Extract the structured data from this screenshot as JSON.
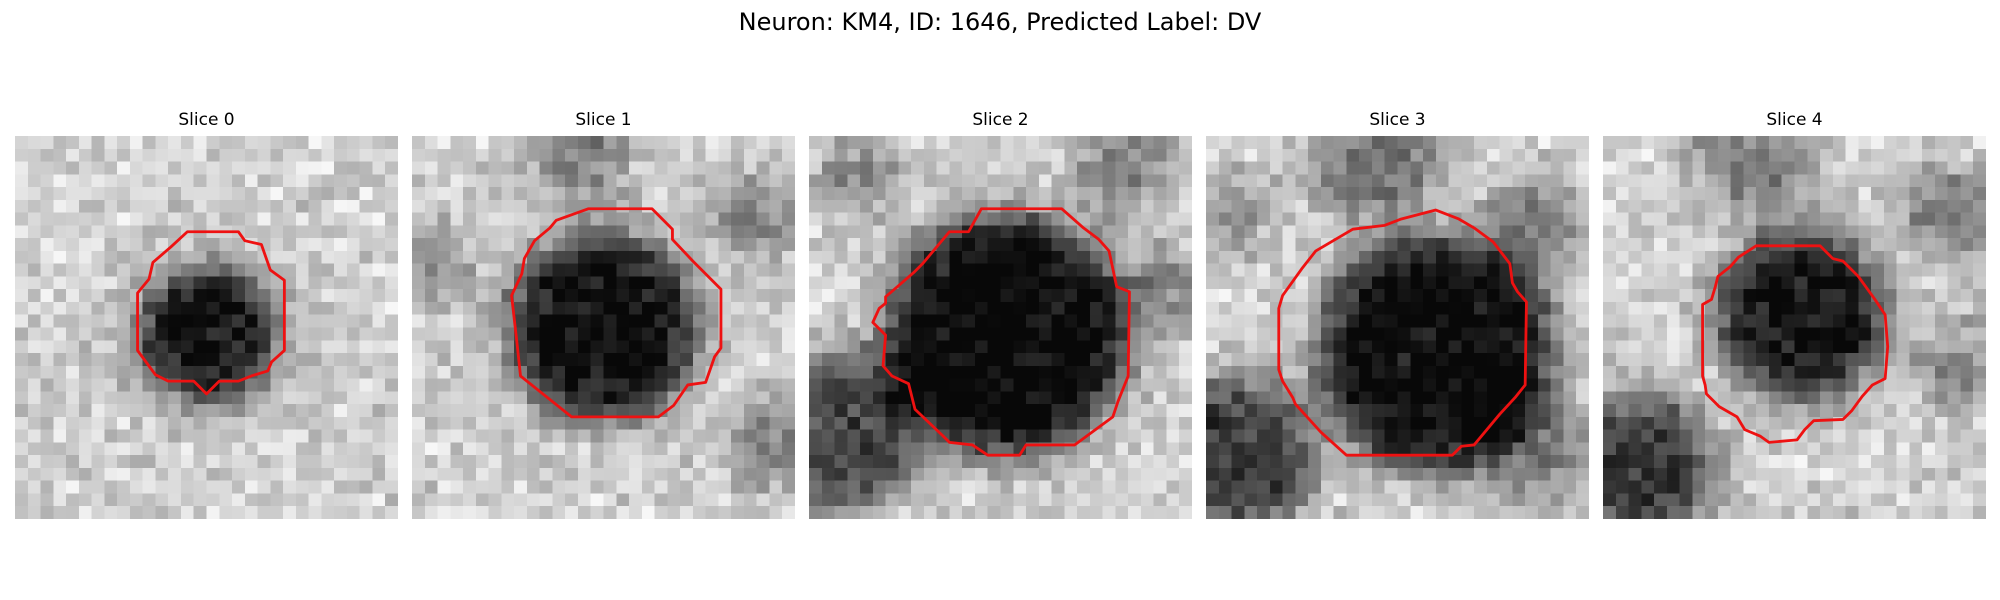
{
  "figure": {
    "title": "Neuron: KM4, ID: 1646, Predicted Label: DV"
  },
  "panels": [
    {
      "title": "Slice 0"
    },
    {
      "title": "Slice 1"
    },
    {
      "title": "Slice 2"
    },
    {
      "title": "Slice 3"
    },
    {
      "title": "Slice 4"
    }
  ],
  "colors": {
    "contour": "#ee1111",
    "background": "#ffffff"
  }
}
